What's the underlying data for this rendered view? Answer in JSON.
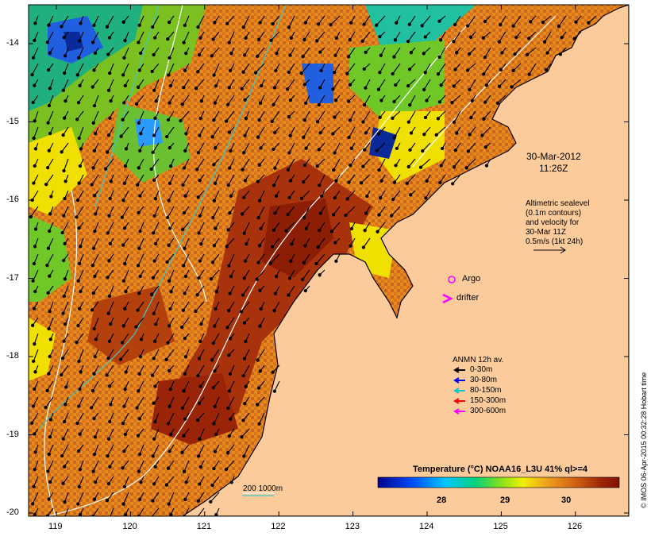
{
  "map": {
    "date_line1": "30-Mar-2012",
    "date_line2": "11:26Z",
    "altimetry_lines": [
      "Altimetric sealevel",
      "(0.1m contours)",
      "and velocity for",
      "30-Mar 11Z",
      "0.5m/s (1kt 24h)"
    ],
    "argo_label": "Argo",
    "drifter_label": "drifter",
    "anmn_title": "ANMN 12h av.",
    "anmn_items": [
      {
        "label": "0-30m",
        "color": "#000000"
      },
      {
        "label": "30-80m",
        "color": "#0000ff"
      },
      {
        "label": "80-150m",
        "color": "#00cccc"
      },
      {
        "label": "150-300m",
        "color": "#ff0000"
      },
      {
        "label": "300-600m",
        "color": "#ff00ff"
      }
    ],
    "bathy_label": "200  1000m",
    "colorbar_title": "Temperature (°C) NOAA16_L3U 41% ql>=4",
    "colorbar_ticks": [
      "28",
      "29",
      "30"
    ],
    "copyright": "© IMOS 06-Apr-2015 00:32:28 Hobart time",
    "lat_ticks": [
      "-14",
      "-15",
      "-16",
      "-17",
      "-18",
      "-19",
      "-20"
    ],
    "lon_ticks": [
      "119",
      "120",
      "121",
      "122",
      "123",
      "124",
      "125",
      "126"
    ],
    "colors": {
      "land": "#fccb9c",
      "argo": "#ff00ff",
      "drifter": "#ff00ff"
    }
  }
}
